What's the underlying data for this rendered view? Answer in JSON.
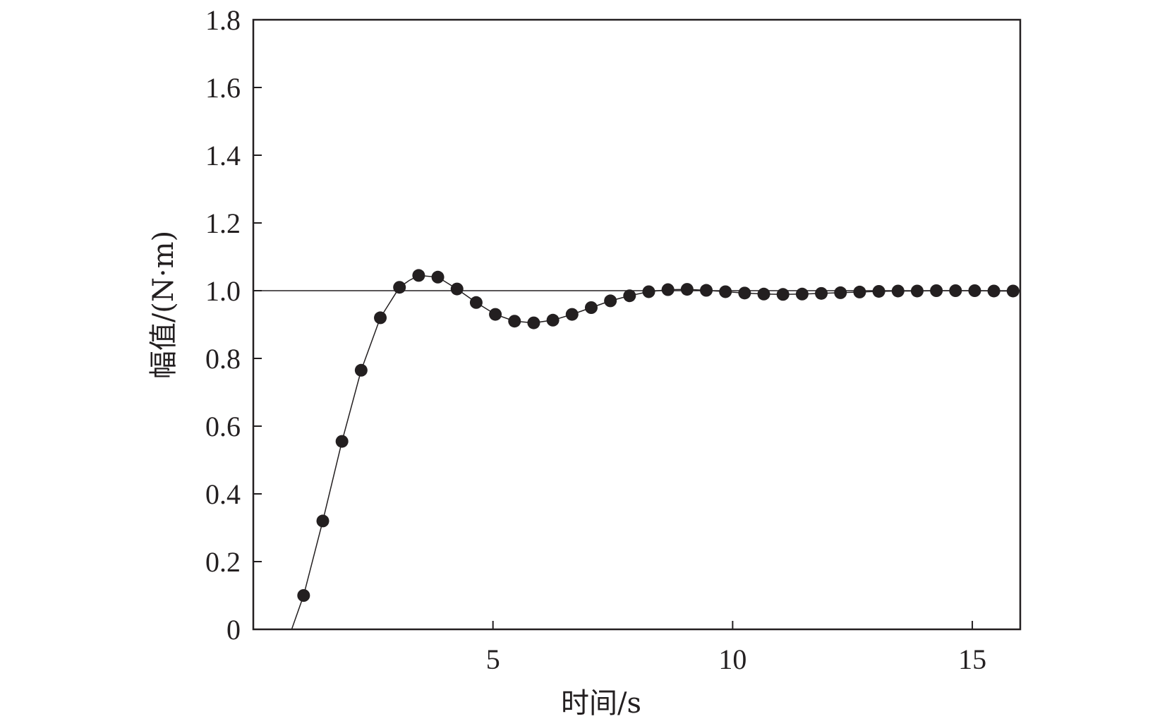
{
  "chart_data": {
    "type": "line",
    "xlabel": "时间/s",
    "ylabel": "幅值/(N·m)",
    "xlim": [
      0,
      16
    ],
    "ylim": [
      0,
      1.8
    ],
    "xticks": [
      5,
      10,
      15
    ],
    "yticks": [
      0,
      0.2,
      0.4,
      0.6,
      0.8,
      1.0,
      1.2,
      1.4,
      1.6,
      1.8
    ],
    "ytick_labels": [
      "0",
      "0.2",
      "0.4",
      "0.6",
      "0.8",
      "1.0",
      "1.2",
      "1.4",
      "1.6",
      "1.8"
    ],
    "reference_line": {
      "y": 1.0
    },
    "series": [
      {
        "style": "line",
        "x": [
          0,
          0.8,
          1.05,
          1.45,
          1.85,
          2.25,
          2.65,
          3.05,
          3.25,
          3.45,
          3.85,
          4.25,
          4.65,
          5.05,
          5.45,
          5.85,
          6.25,
          6.65,
          7.05,
          7.45,
          7.85,
          8.25,
          8.65,
          9.05,
          9.45,
          9.85,
          10.25,
          10.65,
          11.05,
          11.45,
          11.85,
          12.25,
          12.65,
          13.05,
          13.45,
          13.85,
          14.25,
          14.65,
          15.05,
          15.45,
          16.0
        ],
        "y": [
          0,
          0,
          0.1,
          0.32,
          0.555,
          0.765,
          0.92,
          1.01,
          1.03,
          1.045,
          1.04,
          1.005,
          0.965,
          0.93,
          0.91,
          0.905,
          0.913,
          0.93,
          0.95,
          0.97,
          0.985,
          0.997,
          1.003,
          1.004,
          1.001,
          0.997,
          0.993,
          0.99,
          0.989,
          0.99,
          0.992,
          0.994,
          0.996,
          0.998,
          0.999,
          0.999,
          1.0,
          1.0,
          1.0,
          0.999,
          0.999
        ]
      },
      {
        "style": "markers",
        "color": "#231f20",
        "x": [
          1.05,
          1.45,
          1.85,
          2.25,
          2.65,
          3.05,
          3.45,
          3.85,
          4.25,
          4.65,
          5.05,
          5.45,
          5.85,
          6.25,
          6.65,
          7.05,
          7.45,
          7.85,
          8.25,
          8.65,
          9.05,
          9.45,
          9.85,
          10.25,
          10.65,
          11.05,
          11.45,
          11.85,
          12.25,
          12.65,
          13.05,
          13.45,
          13.85,
          14.25,
          14.65,
          15.05,
          15.45,
          15.85
        ],
        "y": [
          0.1,
          0.32,
          0.555,
          0.765,
          0.92,
          1.01,
          1.045,
          1.04,
          1.005,
          0.965,
          0.93,
          0.91,
          0.905,
          0.913,
          0.93,
          0.95,
          0.97,
          0.985,
          0.997,
          1.003,
          1.004,
          1.001,
          0.997,
          0.993,
          0.99,
          0.989,
          0.99,
          0.992,
          0.994,
          0.996,
          0.998,
          0.999,
          0.999,
          1.0,
          1.0,
          1.0,
          0.999,
          0.999
        ]
      }
    ]
  }
}
